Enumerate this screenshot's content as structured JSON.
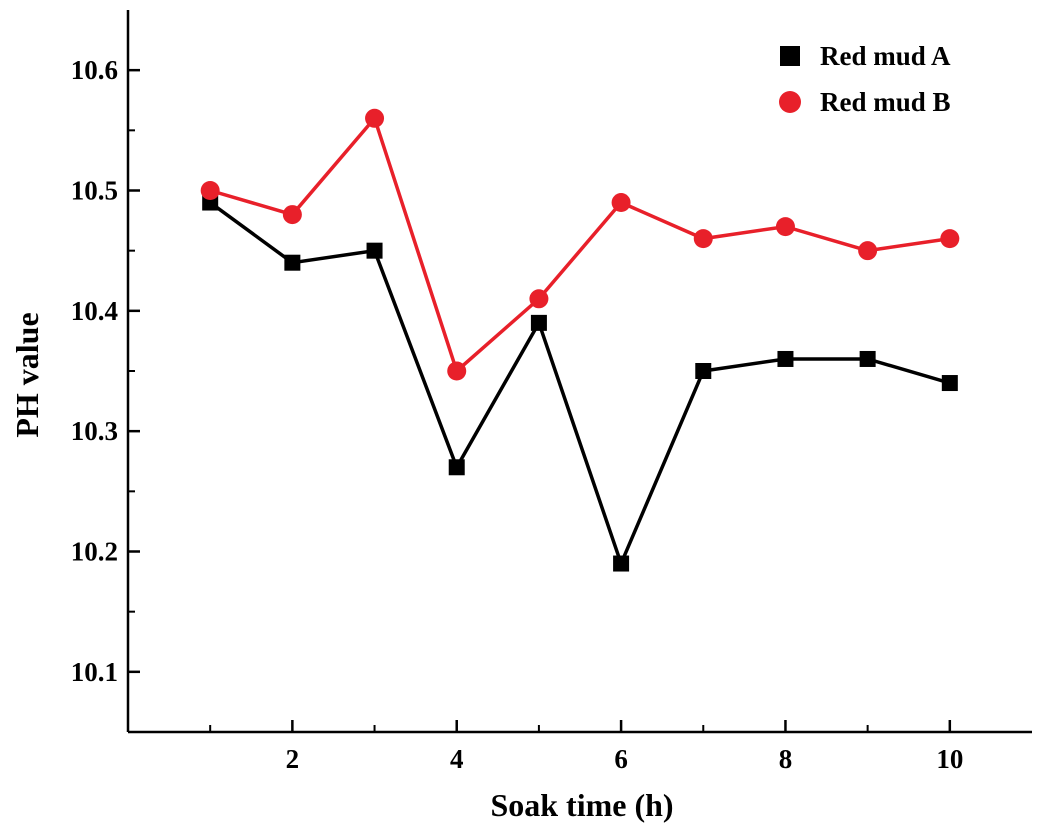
{
  "chart_data": {
    "type": "line",
    "xlabel": "Soak time (h)",
    "ylabel": "PH value",
    "xlim": [
      0,
      11
    ],
    "ylim": [
      10.05,
      10.65
    ],
    "xticks": [
      2,
      4,
      6,
      8,
      10
    ],
    "xtick_labels": [
      "2",
      "4",
      "6",
      "8",
      "10"
    ],
    "yticks": [
      10.1,
      10.2,
      10.3,
      10.4,
      10.5,
      10.6
    ],
    "ytick_labels": [
      "10.1",
      "10.2",
      "10.3",
      "10.4",
      "10.5",
      "10.6"
    ],
    "grid": false,
    "legend_position": "top-right",
    "x": [
      1,
      2,
      3,
      4,
      5,
      6,
      7,
      8,
      9,
      10
    ],
    "series": [
      {
        "name": "Red mud A",
        "color": "#000000",
        "marker": "square",
        "values": [
          10.49,
          10.44,
          10.45,
          10.27,
          10.39,
          10.19,
          10.35,
          10.36,
          10.36,
          10.34
        ]
      },
      {
        "name": "Red mud B",
        "color": "#e8202a",
        "marker": "circle",
        "values": [
          10.5,
          10.48,
          10.56,
          10.35,
          10.41,
          10.49,
          10.46,
          10.47,
          10.45,
          10.46
        ]
      }
    ]
  }
}
